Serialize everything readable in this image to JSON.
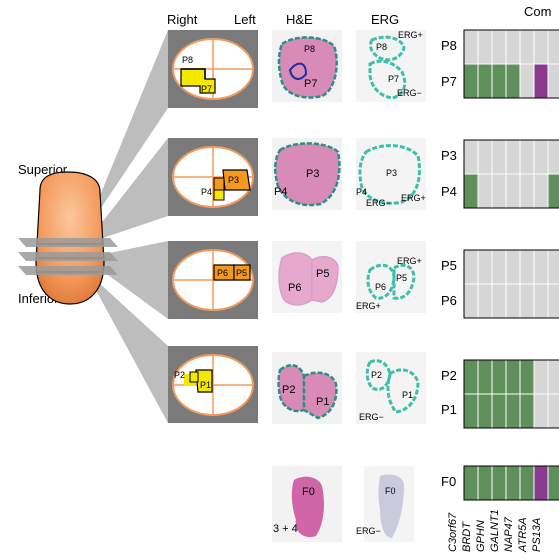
{
  "headers": {
    "right": "Right",
    "left": "Left",
    "he": "H&E",
    "erg": "ERG",
    "top_right": "Com"
  },
  "prostate": {
    "superior": "Superior",
    "inferior": "Inferior"
  },
  "sections": [
    {
      "id": "s1",
      "ov_labels": [
        "P8",
        "P7"
      ],
      "he_labels": [
        "P8",
        "P7"
      ],
      "erg_labels": [
        "P8",
        "ERG+",
        "P7",
        "ERG−"
      ],
      "rows": [
        "P8",
        "P7"
      ]
    },
    {
      "id": "s2",
      "ov_labels": [
        "P3",
        "P4"
      ],
      "he_labels": [
        "P3",
        "P4"
      ],
      "erg_labels": [
        "P3",
        "P4",
        "ERG−",
        "ERG+"
      ],
      "rows": [
        "P3",
        "P4"
      ]
    },
    {
      "id": "s3",
      "ov_labels": [
        "P6",
        "P5"
      ],
      "he_labels": [
        "P5",
        "P6"
      ],
      "erg_labels": [
        "ERG+",
        "P5",
        "P6",
        "ERG+"
      ],
      "rows": [
        "P5",
        "P6"
      ]
    },
    {
      "id": "s4",
      "ov_labels": [
        "P2",
        "P1"
      ],
      "he_labels": [
        "P2",
        "P1"
      ],
      "erg_labels": [
        "P2",
        "P1",
        "ERG−"
      ],
      "rows": [
        "P2",
        "P1"
      ]
    },
    {
      "id": "s5",
      "he_labels": [
        "F0",
        "3 + 4"
      ],
      "erg_labels": [
        "F0",
        "ERG−"
      ],
      "rows": [
        "F0"
      ]
    }
  ],
  "genes": [
    "C3orf67",
    "BRDT",
    "GPHN",
    "GALNT1",
    "NAP47",
    "ATR5A",
    "PS13A"
  ],
  "heatmap": {
    "colors": {
      "green": "#5f8f5a",
      "gray": "#d6d6d6",
      "purple": "#8a3a8f"
    },
    "rows": {
      "P8": [
        "gray",
        "gray",
        "gray",
        "gray",
        "gray",
        "gray",
        "gray"
      ],
      "P7": [
        "green",
        "green",
        "green",
        "green",
        "gray",
        "purple",
        "gray"
      ],
      "P3": [
        "gray",
        "gray",
        "gray",
        "gray",
        "gray",
        "gray",
        "gray"
      ],
      "P4": [
        "green",
        "gray",
        "gray",
        "gray",
        "gray",
        "gray",
        "green"
      ],
      "P5": [
        "gray",
        "gray",
        "gray",
        "gray",
        "gray",
        "gray",
        "gray"
      ],
      "P6": [
        "gray",
        "gray",
        "gray",
        "gray",
        "gray",
        "gray",
        "gray"
      ],
      "P2": [
        "green",
        "green",
        "green",
        "green",
        "green",
        "gray",
        "gray"
      ],
      "P1": [
        "green",
        "green",
        "green",
        "green",
        "green",
        "gray",
        "gray"
      ],
      "F0": [
        "green",
        "green",
        "green",
        "green",
        "green",
        "purple",
        "green"
      ]
    }
  }
}
